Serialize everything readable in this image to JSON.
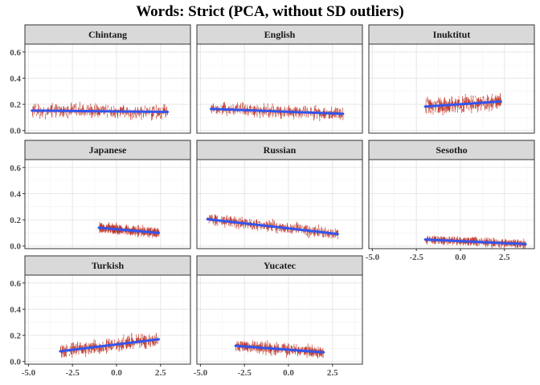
{
  "chart_data": {
    "type": "scatter",
    "title": "Words: Strict (PCA, without SD outliers)",
    "xlabel": "",
    "ylabel": "",
    "xlim": [
      -5.2,
      4.2
    ],
    "ylim": [
      -0.02,
      0.66
    ],
    "x_ticks": [
      -5,
      -2.5,
      0,
      2.5
    ],
    "x_tick_labels": [
      "-5.0",
      "-2.5",
      "0.0",
      "2.5"
    ],
    "y_ticks": [
      0,
      0.2,
      0.4,
      0.6
    ],
    "y_tick_labels": [
      "0.0",
      "0.2",
      "0.4",
      "0.6"
    ],
    "grid": true,
    "point_color": "#c0392b",
    "fit_color": "#3355ee",
    "panels": [
      {
        "name": "Chintang",
        "x_range": [
          -4.8,
          2.9
        ],
        "center": 0.15,
        "spread": 0.035,
        "fit": {
          "x": [
            -4.8,
            2.9
          ],
          "y": [
            0.152,
            0.142
          ]
        }
      },
      {
        "name": "English",
        "x_range": [
          -4.4,
          3.1
        ],
        "center": 0.15,
        "spread": 0.03,
        "fit": {
          "x": [
            -4.4,
            3.1
          ],
          "y": [
            0.165,
            0.128
          ]
        }
      },
      {
        "name": "Inuktitut",
        "x_range": [
          -2.0,
          2.3
        ],
        "center": 0.2,
        "spread": 0.04,
        "fit": {
          "x": [
            -2.0,
            2.3
          ],
          "y": [
            0.183,
            0.222
          ]
        }
      },
      {
        "name": "Japanese",
        "x_range": [
          -1.0,
          2.4
        ],
        "center": 0.12,
        "spread": 0.02,
        "fit": {
          "x": [
            -1.0,
            2.4
          ],
          "y": [
            0.14,
            0.1
          ]
        }
      },
      {
        "name": "Russian",
        "x_range": [
          -4.6,
          2.8
        ],
        "center": 0.15,
        "spread": 0.025,
        "fit": {
          "x": [
            -4.6,
            2.8
          ],
          "y": [
            0.205,
            0.092
          ]
        }
      },
      {
        "name": "Sesotho",
        "x_range": [
          -2.0,
          3.7
        ],
        "center": 0.04,
        "spread": 0.015,
        "fit": {
          "x": [
            -2.0,
            3.7
          ],
          "y": [
            0.05,
            0.015
          ]
        }
      },
      {
        "name": "Turkish",
        "x_range": [
          -3.2,
          2.4
        ],
        "center": 0.13,
        "spread": 0.035,
        "fit": {
          "x": [
            -3.2,
            2.4
          ],
          "y": [
            0.078,
            0.17
          ]
        }
      },
      {
        "name": "Yucatec",
        "x_range": [
          -3.0,
          2.0
        ],
        "center": 0.1,
        "spread": 0.025,
        "fit": {
          "x": [
            -3.0,
            2.0
          ],
          "y": [
            0.12,
            0.07
          ]
        }
      }
    ]
  }
}
